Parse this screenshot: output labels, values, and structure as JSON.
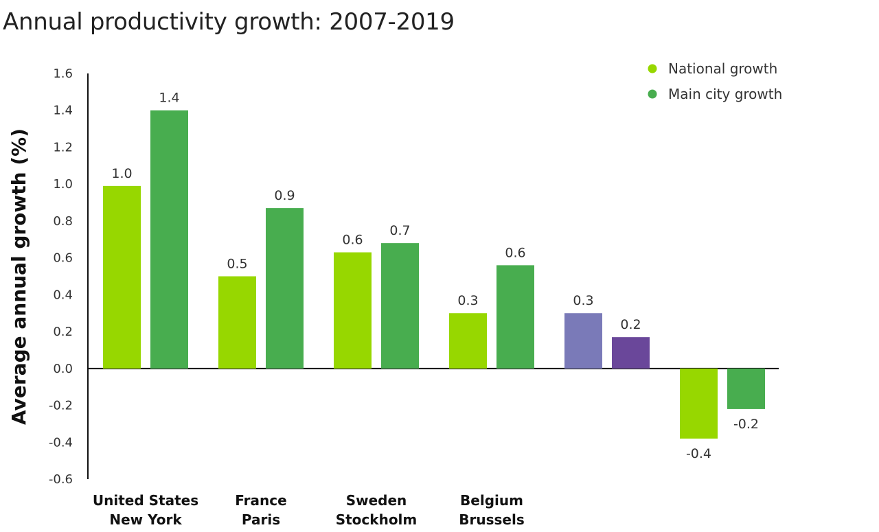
{
  "chart_data": {
    "type": "bar",
    "title": "Annual productivity growth: 2007-2019",
    "ylabel": "Average annual growth (%)",
    "xlabel": "",
    "ylim": [
      -0.6,
      1.6
    ],
    "yticks": [
      1.6,
      1.4,
      1.2,
      1.0,
      0.8,
      0.6,
      0.4,
      0.2,
      0.0,
      -0.2,
      -0.4,
      -0.6
    ],
    "grid": false,
    "legend_position": "top-right",
    "categories": [
      [
        "United States",
        "New York"
      ],
      [
        "France",
        "Paris"
      ],
      [
        "Sweden",
        "Stockholm"
      ],
      [
        "Belgium",
        "Brussels"
      ],
      [
        "",
        ""
      ],
      [
        "",
        ""
      ]
    ],
    "series": [
      {
        "name": "National growth",
        "color": "#97d700",
        "values": [
          0.99,
          0.5,
          0.63,
          0.3,
          0.3,
          -0.38
        ],
        "labels": [
          "1.0",
          "0.5",
          "0.6",
          "0.3",
          "0.3",
          "-0.4"
        ],
        "bar_colors": [
          "#97d700",
          "#97d700",
          "#97d700",
          "#97d700",
          "#7a7ab8",
          "#97d700"
        ]
      },
      {
        "name": "Main city growth",
        "color": "#48ad4f",
        "values": [
          1.4,
          0.87,
          0.68,
          0.56,
          0.17,
          -0.22
        ],
        "labels": [
          "1.4",
          "0.9",
          "0.7",
          "0.6",
          "0.2",
          "-0.2"
        ],
        "bar_colors": [
          "#48ad4f",
          "#48ad4f",
          "#48ad4f",
          "#48ad4f",
          "#6a479a",
          "#48ad4f"
        ]
      }
    ]
  }
}
